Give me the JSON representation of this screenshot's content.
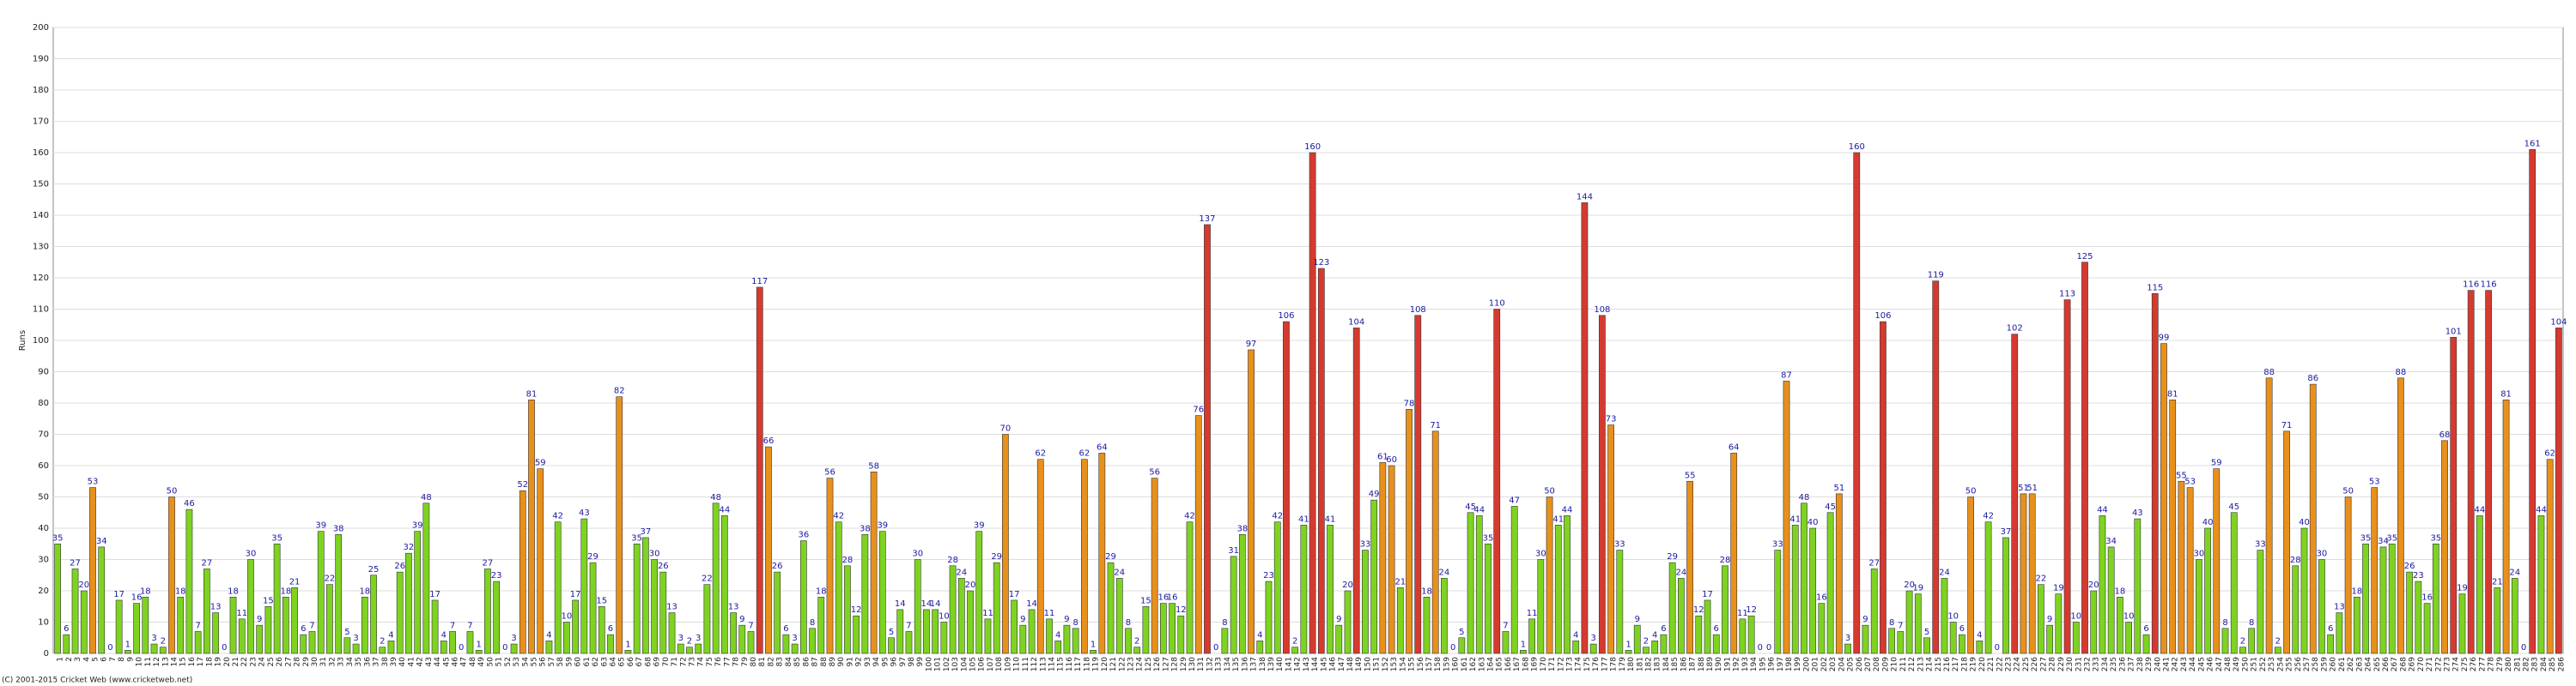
{
  "chart_data": {
    "type": "bar",
    "ylabel": "Runs",
    "footer": "(C) 2001-2015 Cricket Web (www.cricketweb.net)",
    "ylim": [
      0,
      200
    ],
    "yticks": [
      0,
      10,
      20,
      30,
      40,
      50,
      60,
      70,
      80,
      90,
      100,
      110,
      120,
      130,
      140,
      150,
      160,
      170,
      180,
      190,
      200
    ],
    "grid": true,
    "color_scale": [
      {
        "min": 0,
        "color": "#7ed321"
      },
      {
        "min": 50,
        "color": "#e8901c"
      },
      {
        "min": 100,
        "color": "#d63a2f"
      }
    ],
    "categories": [
      1,
      2,
      3,
      4,
      5,
      6,
      7,
      8,
      9,
      10,
      11,
      12,
      13,
      14,
      15,
      16,
      17,
      18,
      19,
      20,
      21,
      22,
      23,
      24,
      25,
      26,
      27,
      28,
      29,
      30,
      31,
      32,
      33,
      34,
      35,
      36,
      37,
      38,
      39,
      40,
      41,
      42,
      43,
      44,
      45,
      46,
      47,
      48,
      49,
      50,
      51,
      52,
      53,
      54,
      55,
      56,
      57,
      58,
      59,
      60,
      61,
      62,
      63,
      64,
      65,
      66,
      67,
      68,
      69,
      70,
      71,
      72,
      73,
      74,
      75,
      76,
      77,
      78,
      79,
      80,
      81,
      82,
      83,
      84,
      85,
      86,
      87,
      88,
      89,
      90,
      91,
      92,
      93,
      94,
      95,
      96,
      97,
      98,
      99,
      100,
      101,
      102,
      103,
      104,
      105,
      106,
      107,
      108,
      109,
      110,
      111,
      112,
      113,
      114,
      115,
      116,
      117,
      118,
      119,
      120,
      121,
      122,
      123,
      124,
      125,
      126,
      127,
      128,
      129,
      130,
      131,
      132,
      133,
      134,
      135,
      136,
      137,
      138,
      139,
      140,
      141,
      142,
      143,
      144,
      145,
      146,
      147,
      148,
      149,
      150,
      151,
      152,
      153,
      154,
      155,
      156,
      157,
      158,
      159,
      160,
      161,
      162,
      163,
      164,
      165,
      166,
      167,
      168,
      169,
      170,
      171,
      172,
      173,
      174,
      175,
      176,
      177,
      178,
      179,
      180,
      181,
      182,
      183,
      184,
      185,
      186,
      187,
      188,
      189,
      190,
      191,
      192,
      193,
      194,
      195,
      196,
      197,
      198,
      199,
      200,
      201,
      202,
      203,
      204,
      205,
      206,
      207,
      208,
      209,
      210,
      211,
      212,
      213,
      214,
      215,
      216,
      217,
      218,
      219,
      220,
      221,
      222,
      223,
      224,
      225,
      226,
      227,
      228,
      229,
      230,
      231,
      232,
      233,
      234,
      235,
      236,
      237,
      238,
      239,
      240,
      241,
      242,
      243,
      244,
      245,
      246,
      247,
      248,
      249,
      250,
      251,
      252,
      253,
      254,
      255,
      256,
      257,
      258,
      259,
      260,
      261,
      262,
      263,
      264,
      265,
      266,
      267,
      268,
      269,
      270,
      271,
      272,
      273,
      274,
      275,
      276,
      277,
      278,
      279,
      280,
      281,
      282,
      283,
      284,
      285,
      286
    ],
    "values": [
      35,
      6,
      27,
      20,
      53,
      34,
      0,
      17,
      1,
      16,
      18,
      3,
      2,
      50,
      18,
      46,
      7,
      27,
      13,
      0,
      18,
      11,
      30,
      9,
      15,
      35,
      18,
      21,
      6,
      7,
      39,
      22,
      38,
      5,
      3,
      18,
      25,
      2,
      4,
      26,
      32,
      39,
      48,
      17,
      4,
      7,
      0,
      7,
      1,
      27,
      23,
      0,
      3,
      52,
      81,
      59,
      4,
      42,
      10,
      17,
      43,
      29,
      15,
      6,
      82,
      1,
      35,
      37,
      30,
      26,
      13,
      3,
      2,
      3,
      22,
      48,
      44,
      13,
      9,
      7,
      117,
      66,
      26,
      6,
      3,
      36,
      8,
      18,
      56,
      42,
      28,
      12,
      38,
      58,
      39,
      5,
      14,
      7,
      30,
      14,
      14,
      10,
      28,
      24,
      20,
      39,
      11,
      29,
      70,
      17,
      9,
      14,
      62,
      11,
      4,
      9,
      8,
      62,
      1,
      64,
      29,
      24,
      8,
      2,
      15,
      56,
      16,
      16,
      12,
      42,
      76,
      137,
      0,
      8,
      31,
      38,
      97,
      4,
      23,
      42,
      106,
      2,
      41,
      160,
      123,
      41,
      9,
      20,
      104,
      33,
      49,
      61,
      60,
      21,
      78,
      108,
      18,
      71,
      24,
      0,
      5,
      45,
      44,
      35,
      110,
      7,
      47,
      1,
      11,
      30,
      50,
      41,
      44,
      4,
      144,
      3,
      108,
      73,
      33,
      1,
      9,
      2,
      4,
      6,
      29,
      24,
      55,
      12,
      17,
      6,
      28,
      64,
      11,
      12,
      0,
      0,
      33,
      87,
      41,
      48,
      40,
      16,
      45,
      51,
      3,
      160,
      9,
      27,
      106,
      8,
      7,
      20,
      19,
      5,
      119,
      24,
      10,
      6,
      50,
      4,
      42,
      0,
      37,
      102,
      51,
      51,
      22,
      9,
      19,
      113,
      10,
      125,
      20,
      44,
      34,
      18,
      10,
      43,
      6,
      115,
      99,
      81,
      55,
      53,
      30,
      40,
      59,
      8,
      45,
      2,
      8,
      33,
      88,
      2,
      71,
      28,
      40,
      86,
      30,
      6,
      13,
      50,
      18,
      35,
      53,
      34,
      35,
      88,
      26,
      23,
      16,
      35,
      68,
      101,
      19,
      116,
      44,
      116,
      21,
      81,
      24,
      0,
      161,
      44,
      62,
      104
    ]
  }
}
